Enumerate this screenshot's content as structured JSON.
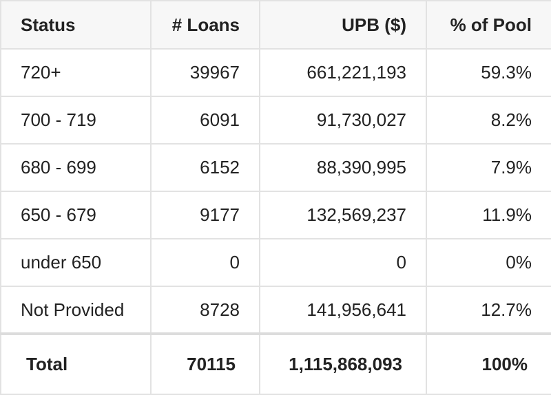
{
  "table": {
    "header": [
      "Status",
      "# Loans",
      "UPB ($)",
      "% of Pool"
    ],
    "rows": [
      [
        "720+",
        "39967",
        "661,221,193",
        "59.3%"
      ],
      [
        "700 - 719",
        "6091",
        "91,730,027",
        "8.2%"
      ],
      [
        "680 - 699",
        "6152",
        "88,390,995",
        "7.9%"
      ],
      [
        "650 - 679",
        "9177",
        "132,569,237",
        "11.9%"
      ],
      [
        "under 650",
        "0",
        "0",
        "0%"
      ],
      [
        "Not Provided",
        "8728",
        "141,956,641",
        "12.7%"
      ]
    ],
    "total": [
      "Total",
      "70115",
      "1,115,868,093",
      "100%"
    ]
  }
}
